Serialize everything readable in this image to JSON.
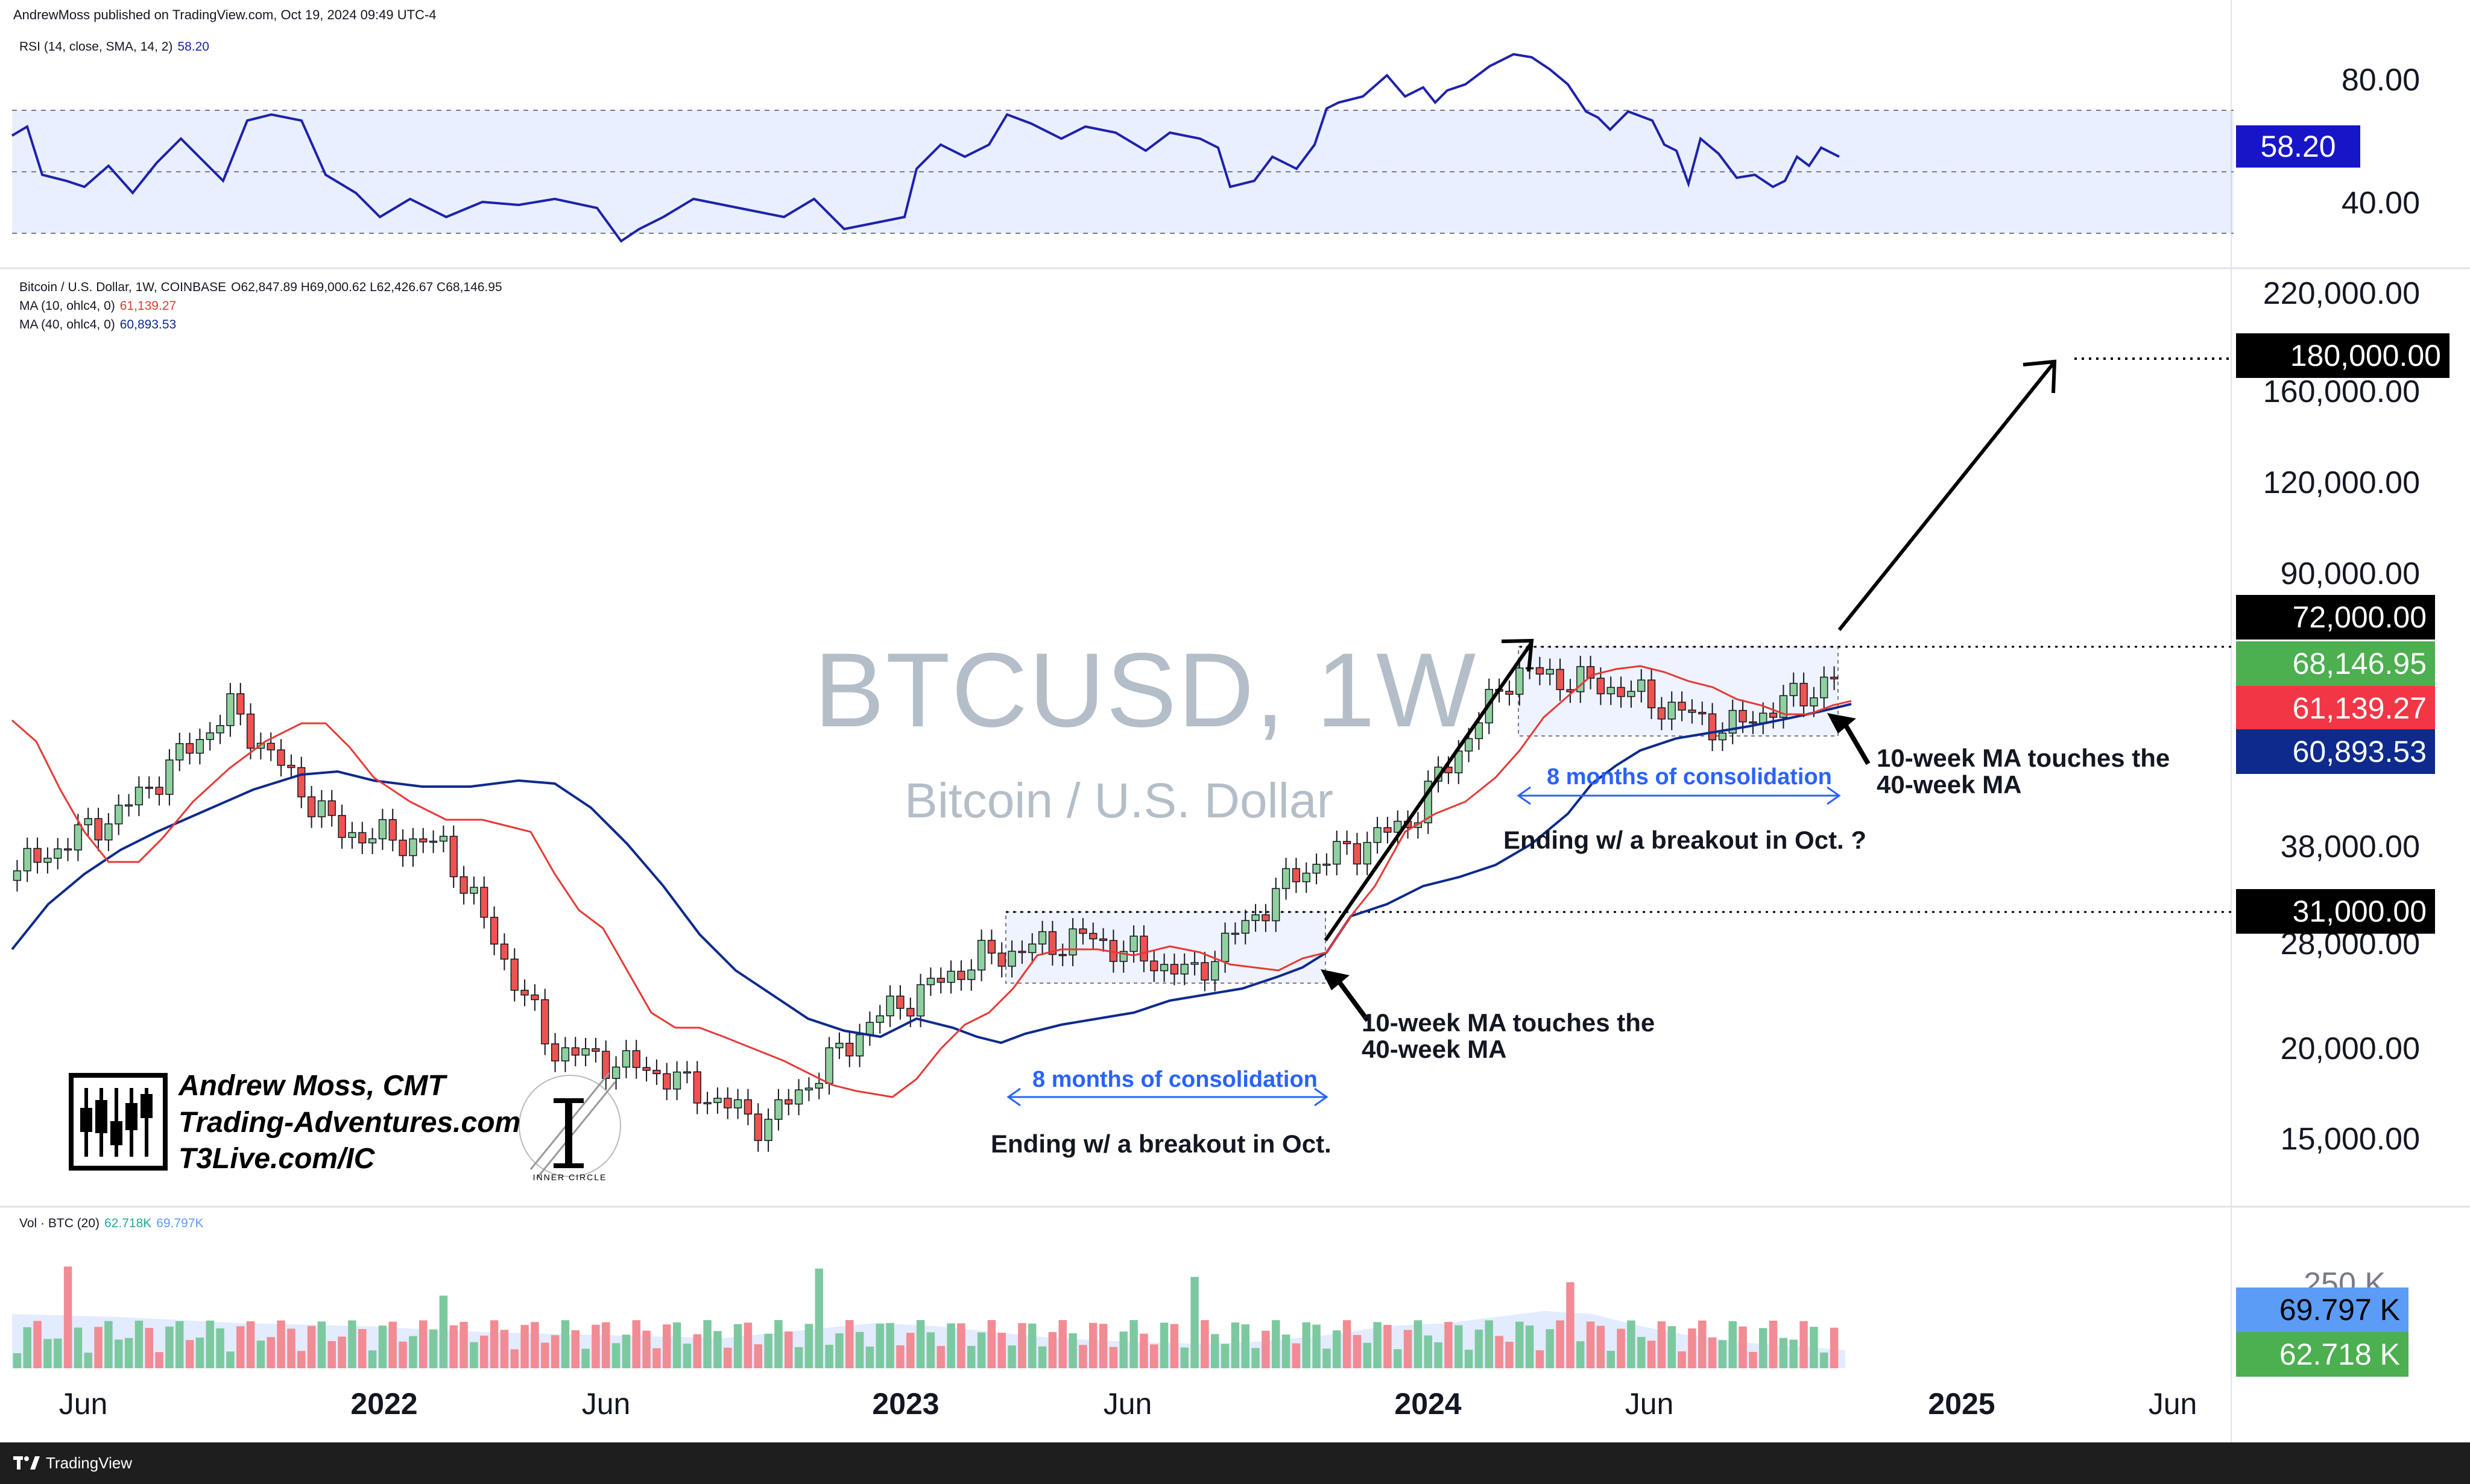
{
  "header": {
    "published": "AndrewMoss published on TradingView.com, Oct 19, 2024 09:49 UTC-4"
  },
  "rsi": {
    "legend": "RSI (14, close, SMA, 14, 2)",
    "value": "58.20",
    "levels": [
      "80.00",
      "40.00"
    ],
    "line_color": "#1e22aa"
  },
  "price": {
    "title": "Bitcoin / U.S. Dollar, 1W, COINBASE",
    "ohlc": "O62,847.89 H69,000.62 L62,426.67 C68,146.95",
    "ma10_label": "MA (10, ohlc4, 0)",
    "ma10_value": "61,139.27",
    "ma40_label": "MA (40, ohlc4, 0)",
    "ma40_value": "60,893.53",
    "watermark_symbol": "BTCUSD, 1W",
    "watermark_name": "Bitcoin / U.S. Dollar",
    "axis_labels": [
      "220,000.00",
      "160,000.00",
      "120,000.00",
      "90,000.00",
      "38,000.00",
      "28,000.00",
      "20,000.00",
      "15,000.00"
    ],
    "tags": {
      "target": "180,000.00",
      "resistance": "72,000.00",
      "last": "68,146.95",
      "ma10": "61,139.27",
      "ma40": "60,893.53",
      "support": "31,000.00"
    },
    "colors": {
      "up": "#26a69a",
      "up_fill": "#a5d6a7",
      "down": "#ef5350",
      "ma10": "#e53935",
      "ma40": "#0d2a8c"
    }
  },
  "volume": {
    "legend": "Vol · BTC (20)",
    "value1": "62.718K",
    "value2": "69.797K",
    "tag_ma": "69.797 K",
    "tag_vol": "62.718 K",
    "axis_label": "250 K"
  },
  "time_axis": [
    "Jun",
    "2022",
    "Jun",
    "2023",
    "Jun",
    "2024",
    "Jun",
    "2025",
    "Jun"
  ],
  "annotations": {
    "touch_1_line1": "10-week MA touches the",
    "touch_1_line2": "40-week MA",
    "touch_2_line1": "10-week MA touches the",
    "touch_2_line2": "40-week MA",
    "consolidation_1": "8 months of consolidation",
    "consolidation_2": "8 months of consolidation",
    "breakout_1": "Ending w/ a breakout in Oct.",
    "breakout_2": "Ending w/ a breakout in Oct. ?"
  },
  "branding": {
    "name": "Andrew Moss, CMT",
    "site": "Trading-Adventures.com",
    "site2": "T3Live.com/IC",
    "seal_text": "INNER CIRCLE"
  },
  "footer": {
    "brand": "TradingView"
  },
  "chart_data": {
    "type": "line",
    "title": "BTCUSD, 1W",
    "subtitle": "Bitcoin / U.S. Dollar",
    "x": [
      "2021-05",
      "2021-08",
      "2021-11",
      "2022-01",
      "2022-04",
      "2022-06",
      "2022-09",
      "2022-11",
      "2023-01",
      "2023-03",
      "2023-06",
      "2023-09",
      "2023-11",
      "2024-01",
      "2024-03",
      "2024-06",
      "2024-08",
      "2024-10"
    ],
    "series": [
      {
        "values": [
          37000,
          45000,
          62000,
          42000,
          40000,
          21000,
          19500,
          16500,
          23000,
          28000,
          30000,
          26500,
          37000,
          43000,
          70000,
          66000,
          58000,
          68146.95
        ]
      },
      {
        "name": "MA (10, ohlc4, 0)",
        "values": [
          44000,
          38000,
          56000,
          48000,
          42000,
          29000,
          21000,
          18500,
          18500,
          25000,
          28500,
          27000,
          31000,
          40000,
          55000,
          66000,
          62000,
          61139.27
        ]
      },
      {
        "name": "MA (40, ohlc4, 0)",
        "values": [
          26000,
          36000,
          48000,
          47000,
          44000,
          38000,
          27000,
          22000,
          20000,
          21000,
          24000,
          26500,
          29000,
          35000,
          42000,
          50000,
          56000,
          60893.53
        ]
      }
    ],
    "yscale": "log",
    "ylim": [
      13000,
      240000
    ],
    "levels": {
      "target": 180000,
      "resistance": 72000,
      "support": 31000
    },
    "rsi_last": 58.2,
    "volume_last_k": 62.718,
    "volume_ma_k": 69.797
  }
}
